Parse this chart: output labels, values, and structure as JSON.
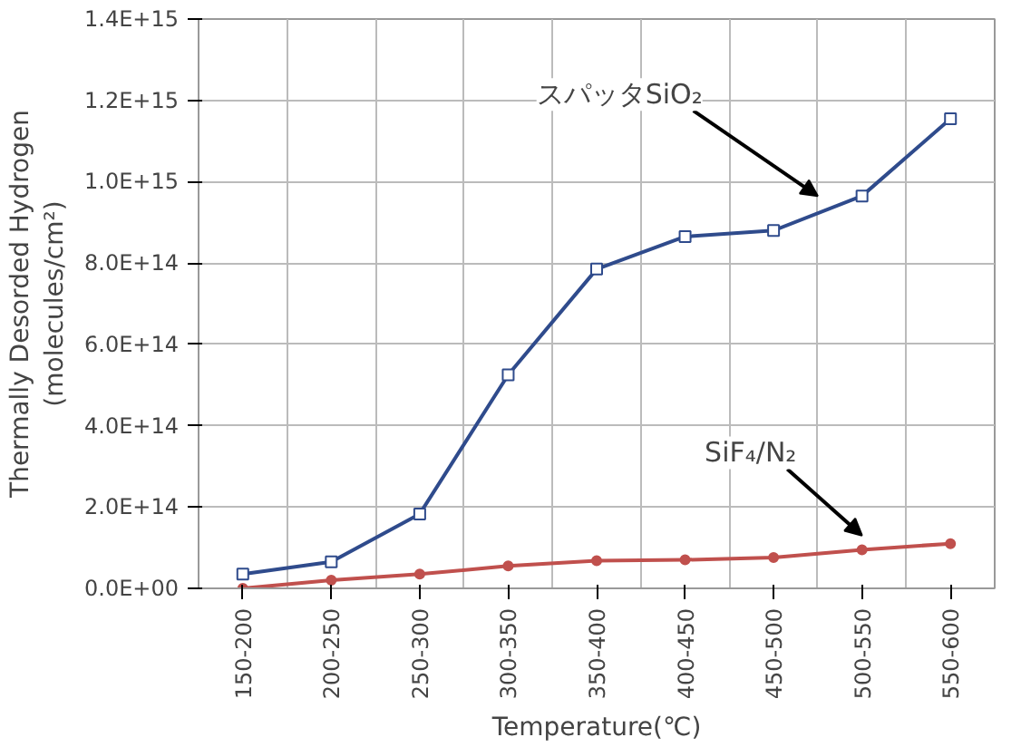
{
  "chart_data": {
    "type": "line",
    "xlabel": "Temperature(℃)",
    "ylabel": "Thermally Desorded Hydrogen\n(molecules/cm²)",
    "categories": [
      "150-200",
      "200-250",
      "250-300",
      "300-350",
      "350-400",
      "400-450",
      "450-500",
      "500-550",
      "550-600"
    ],
    "series": [
      {
        "name": "スパッタSiO₂",
        "color": "#2f4b8c",
        "marker": "square",
        "values": [
          35000000000000.0,
          65000000000000.0,
          183000000000000.0,
          525000000000000.0,
          785000000000000.0,
          865000000000000.0,
          880000000000000.0,
          965000000000000.0,
          1155000000000000.0
        ]
      },
      {
        "name": "SiF₄/N₂",
        "color": "#c0504d",
        "marker": "circle",
        "values": [
          0,
          20000000000000.0,
          35000000000000.0,
          55000000000000.0,
          68000000000000.0,
          70000000000000.0,
          76000000000000.0,
          95000000000000.0,
          110000000000000.0
        ]
      }
    ],
    "ylim": [
      0,
      1400000000000000.0
    ],
    "yticks": [
      {
        "value": 0,
        "label": "0.0E+00"
      },
      {
        "value": 200000000000000.0,
        "label": "2.0E+14"
      },
      {
        "value": 400000000000000.0,
        "label": "4.0E+14"
      },
      {
        "value": 600000000000000.0,
        "label": "6.0E+14"
      },
      {
        "value": 800000000000000.0,
        "label": "8.0E+14"
      },
      {
        "value": 1000000000000000.0,
        "label": "1.0E+15"
      },
      {
        "value": 1200000000000000.0,
        "label": "1.2E+15"
      },
      {
        "value": 1400000000000000.0,
        "label": "1.4E+15"
      }
    ],
    "grid": true,
    "line_style": "solid"
  }
}
